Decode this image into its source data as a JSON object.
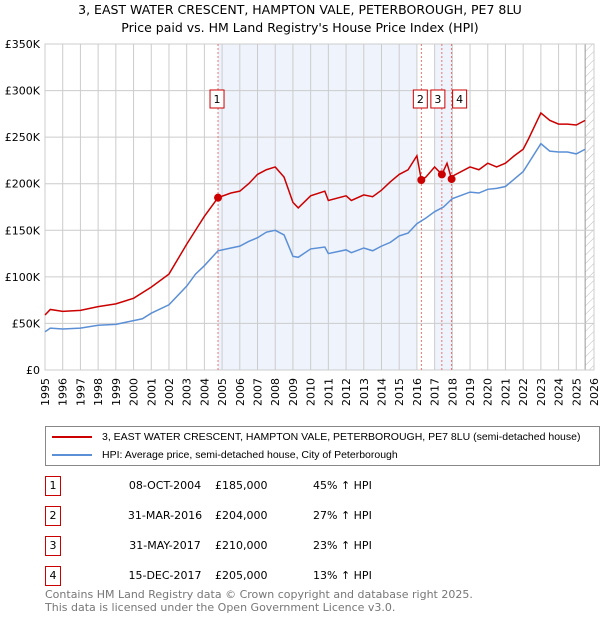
{
  "chart_data": {
    "type": "line",
    "title": "3, EAST WATER CRESCENT, HAMPTON VALE, PETERBOROUGH, PE7 8LU",
    "subtitle": "Price paid vs. HM Land Registry's House Price Index (HPI)",
    "xlim": [
      1995,
      2026
    ],
    "ylim": [
      0,
      350000
    ],
    "x_ticks": [
      "1995",
      "1996",
      "1997",
      "1998",
      "1999",
      "2000",
      "2001",
      "2002",
      "2003",
      "2004",
      "2005",
      "2006",
      "2007",
      "2008",
      "2009",
      "2010",
      "2011",
      "2012",
      "2013",
      "2014",
      "2015",
      "2016",
      "2017",
      "2018",
      "2019",
      "2020",
      "2021",
      "2022",
      "2023",
      "2024",
      "2025",
      "2026"
    ],
    "y_ticks": [
      {
        "v": 0,
        "label": "£0"
      },
      {
        "v": 50000,
        "label": "£50K"
      },
      {
        "v": 100000,
        "label": "£100K"
      },
      {
        "v": 150000,
        "label": "£150K"
      },
      {
        "v": 200000,
        "label": "£200K"
      },
      {
        "v": 250000,
        "label": "£250K"
      },
      {
        "v": 300000,
        "label": "£300K"
      },
      {
        "v": 350000,
        "label": "£350K"
      }
    ],
    "grid": true,
    "shaded_ranges": [
      [
        2004.77,
        2016.0
      ],
      [
        2017.0,
        2018.0
      ]
    ],
    "forecast_hatch_from": 2025.5,
    "series": [
      {
        "name": "3, EAST WATER CRESCENT, HAMPTON VALE, PETERBOROUGH, PE7 8LU (semi-detached house)",
        "color": "#cc0000",
        "x": [
          1995,
          1995.3,
          1996,
          1997,
          1998,
          1999,
          2000,
          2001,
          2002,
          2003,
          2003.5,
          2004,
          2004.77,
          2005.5,
          2006,
          2006.5,
          2007,
          2007.5,
          2008,
          2008.5,
          2009,
          2009.3,
          2010,
          2010.8,
          2011,
          2012,
          2012.3,
          2013,
          2013.5,
          2014,
          2014.5,
          2015,
          2015.5,
          2016,
          2016.25,
          2016.5,
          2017,
          2017.41,
          2017.7,
          2017.96,
          2018,
          2019,
          2019.5,
          2020,
          2020.5,
          2021,
          2021.5,
          2022,
          2022.3,
          2023,
          2023.5,
          2024,
          2024.5,
          2025,
          2025.5
        ],
        "y": [
          59000,
          65000,
          63000,
          64000,
          68000,
          71000,
          77000,
          89000,
          103000,
          135000,
          150000,
          165000,
          185000,
          190000,
          192000,
          200000,
          210000,
          215000,
          218000,
          207000,
          180000,
          174000,
          187000,
          192000,
          182000,
          187000,
          182000,
          188000,
          186000,
          193000,
          202000,
          210000,
          215000,
          230000,
          204000,
          207000,
          218000,
          210000,
          222000,
          205000,
          208000,
          218000,
          215000,
          222000,
          218000,
          222000,
          230000,
          237000,
          248000,
          276000,
          268000,
          264000,
          264000,
          263000,
          268000
        ]
      },
      {
        "name": "HPI: Average price, semi-detached house, City of Peterborough",
        "color": "#5b8fd6",
        "x": [
          1995,
          1995.3,
          1996,
          1997,
          1998,
          1999,
          2000,
          2000.5,
          2001,
          2002,
          2003,
          2003.5,
          2004,
          2004.77,
          2005.5,
          2006,
          2006.5,
          2007,
          2007.5,
          2008,
          2008.5,
          2009,
          2009.3,
          2010,
          2010.8,
          2011,
          2012,
          2012.3,
          2013,
          2013.5,
          2014,
          2014.5,
          2015,
          2015.5,
          2016,
          2016.5,
          2017,
          2017.5,
          2018,
          2019,
          2019.5,
          2020,
          2020.5,
          2021,
          2021.5,
          2022,
          2022.3,
          2023,
          2023.5,
          2024,
          2024.5,
          2025,
          2025.5
        ],
        "y": [
          41000,
          45000,
          44000,
          45000,
          48000,
          49000,
          53000,
          55000,
          61000,
          70000,
          90000,
          103000,
          112000,
          128000,
          131000,
          133000,
          138000,
          142000,
          148000,
          150000,
          145000,
          122000,
          121000,
          130000,
          132000,
          125000,
          129000,
          126000,
          131000,
          128000,
          133000,
          137000,
          144000,
          147000,
          157000,
          163000,
          170000,
          175000,
          184000,
          191000,
          190000,
          194000,
          195000,
          197000,
          205000,
          213000,
          222000,
          243000,
          235000,
          234000,
          234000,
          232000,
          237000
        ]
      }
    ],
    "sales": [
      {
        "n": "1",
        "x": 2004.77,
        "y": 185000,
        "date": "08-OCT-2004",
        "price": "£185,000",
        "hpi": "45% ↑ HPI"
      },
      {
        "n": "2",
        "x": 2016.25,
        "y": 204000,
        "date": "31-MAR-2016",
        "price": "£204,000",
        "hpi": "27% ↑ HPI"
      },
      {
        "n": "3",
        "x": 2017.41,
        "y": 210000,
        "date": "31-MAY-2017",
        "price": "£210,000",
        "hpi": "23% ↑ HPI"
      },
      {
        "n": "4",
        "x": 2017.96,
        "y": 205000,
        "date": "15-DEC-2017",
        "price": "£205,000",
        "hpi": "13% ↑ HPI"
      }
    ]
  },
  "footer": {
    "line1": "Contains HM Land Registry data © Crown copyright and database right 2025.",
    "line2": "This data is licensed under the Open Government Licence v3.0."
  }
}
